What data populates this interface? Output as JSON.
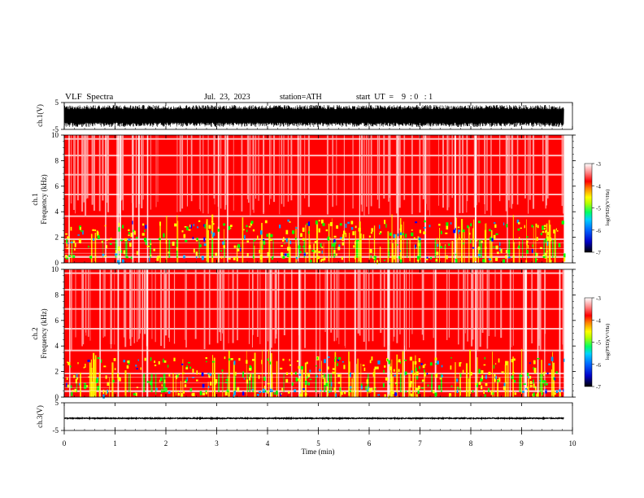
{
  "header": {
    "title": "VLF  Spectra",
    "date": "Jul.  23,  2023",
    "station": "station=ATH",
    "start": "start  UT  =    9  : 0   : 1"
  },
  "chart_data": [
    {
      "type": "line",
      "id": "ch1-waveform",
      "ylabel": "ch.1(V)",
      "ylim": [
        -5,
        5
      ],
      "yticks": [
        5,
        -5
      ],
      "xlim": [
        0,
        10
      ],
      "x_extent": [
        0,
        9.83
      ],
      "amplitude_note": "dense oscillation spanning about -4 to +4 V"
    },
    {
      "type": "heatmap",
      "id": "ch1-spectrogram",
      "label": "ch.1",
      "ylabel": "Frequency  (kHz)",
      "ylim": [
        0,
        10
      ],
      "yticks": [
        0,
        2,
        4,
        6,
        8,
        10
      ],
      "xlim": [
        0,
        10
      ],
      "x_extent": [
        0,
        9.83
      ],
      "colorbar": {
        "label": "log(PSD)(V²/Hz)",
        "range": [
          -7,
          -3
        ],
        "ticks": [
          -3,
          -4,
          -5,
          -6,
          -7
        ]
      },
      "bands_khz": [
        [
          0,
          0.4
        ],
        [
          0.4,
          1.8
        ],
        [
          1.8,
          3.6
        ],
        [
          3.6,
          10
        ]
      ]
    },
    {
      "type": "heatmap",
      "id": "ch2-spectrogram",
      "label": "ch.2",
      "ylabel": "Frequency  (kHz)",
      "ylim": [
        0,
        10
      ],
      "yticks": [
        0,
        2,
        4,
        6,
        8,
        10
      ],
      "xlim": [
        0,
        10
      ],
      "x_extent": [
        0,
        9.83
      ],
      "colorbar": {
        "label": "log(PSD)(V²/Hz)",
        "range": [
          -7,
          -3
        ],
        "ticks": [
          -3,
          -4,
          -5,
          -6,
          -7
        ]
      },
      "bands_khz": [
        [
          0,
          0.4
        ],
        [
          0.4,
          1.8
        ],
        [
          1.8,
          3.6
        ],
        [
          3.6,
          10
        ]
      ]
    },
    {
      "type": "line",
      "id": "ch3-waveform",
      "ylabel": "ch.3(V)",
      "ylim": [
        -5,
        5
      ],
      "yticks": [
        5,
        -5
      ],
      "xlim": [
        0,
        10
      ],
      "x_extent": [
        0,
        9.83
      ],
      "baseline_v": -0.6
    }
  ],
  "xaxis": {
    "label": "Time  (min)",
    "ticks": [
      0,
      1,
      2,
      3,
      4,
      5,
      6,
      7,
      8,
      9,
      10
    ]
  },
  "colors": {
    "high": "#ff0000",
    "mid": "#ffff00",
    "lowmid": "#00ff00",
    "low": "#00a0ff",
    "deep": "#0000ff",
    "floor": "#000000"
  }
}
